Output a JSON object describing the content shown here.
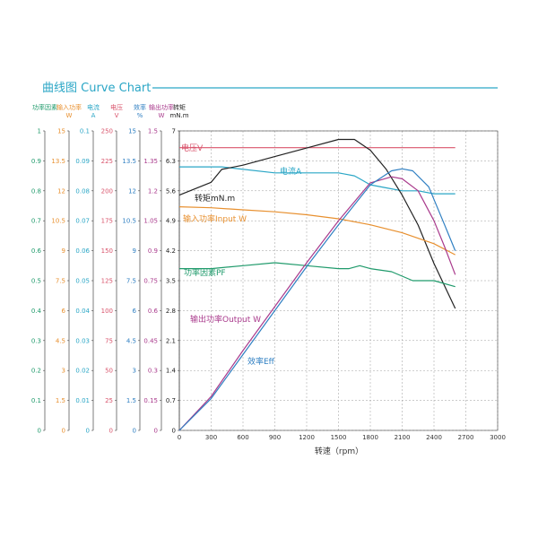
{
  "chart_data": {
    "type": "line",
    "title": "曲线图 Curve Chart",
    "xlabel": "转速（rpm）",
    "xlim": [
      0,
      3000
    ],
    "x_ticks": [
      "0",
      "300",
      "600",
      "900",
      "1200",
      "1500",
      "1800",
      "2100",
      "2400",
      "2700",
      "3000"
    ],
    "grid": true,
    "y_axes": [
      {
        "id": "pf",
        "label": "功率因素",
        "unit": "",
        "color": "#1f9a6b",
        "ylim": [
          0,
          1
        ],
        "ticks": [
          "0",
          "0.1",
          "0.2",
          "0.3",
          "0.4",
          "0.5",
          "0.6",
          "0.7",
          "0.8",
          "0.9",
          "1"
        ]
      },
      {
        "id": "pin",
        "label": "输入功率",
        "unit": "W",
        "color": "#e8902f",
        "ylim": [
          0,
          15
        ],
        "ticks": [
          "0",
          "1.5",
          "3",
          "4.5",
          "6",
          "7.5",
          "9",
          "10.5",
          "12",
          "13.5",
          "15"
        ]
      },
      {
        "id": "cur",
        "label": "电流",
        "unit": "A",
        "color": "#2aa6c6",
        "ylim": [
          0,
          0.1
        ],
        "ticks": [
          "0",
          "0.01",
          "0.02",
          "0.03",
          "0.04",
          "0.05",
          "0.06",
          "0.07",
          "0.08",
          "0.09",
          "0.1"
        ]
      },
      {
        "id": "vol",
        "label": "电压",
        "unit": "V",
        "color": "#d9546c",
        "ylim": [
          0,
          250
        ],
        "ticks": [
          "0",
          "25",
          "50",
          "75",
          "100",
          "125",
          "150",
          "175",
          "200",
          "225",
          "250"
        ]
      },
      {
        "id": "eff",
        "label": "效率",
        "unit": "%",
        "color": "#2f7fc2",
        "ylim": [
          0,
          15
        ],
        "ticks": [
          "0",
          "1.5",
          "3",
          "4.5",
          "6",
          "7.5",
          "9",
          "10.5",
          "12",
          "13.5",
          "15"
        ]
      },
      {
        "id": "pout",
        "label": "输出功率",
        "unit": "W",
        "color": "#a93a8c",
        "ylim": [
          0,
          1.5
        ],
        "ticks": [
          "0",
          "0.15",
          "0.3",
          "0.45",
          "0.6",
          "0.75",
          "0.9",
          "1.05",
          "1.2",
          "1.35",
          "1.5"
        ]
      },
      {
        "id": "tq",
        "label": "转矩",
        "unit": "mN.m",
        "color": "#222222",
        "ylim": [
          0,
          7
        ],
        "ticks": [
          "0",
          "0.7",
          "1.4",
          "2.1",
          "2.8",
          "3.5",
          "4.2",
          "4.9",
          "5.6",
          "6.3",
          "7"
        ]
      }
    ],
    "series": [
      {
        "name": "电压V",
        "axis": "vol",
        "color": "#d9546c",
        "x": [
          0,
          2600
        ],
        "y": [
          236,
          236
        ]
      },
      {
        "name": "电流A",
        "axis": "cur",
        "color": "#2aa6c6",
        "x": [
          0,
          400,
          900,
          1500,
          1650,
          1700,
          1800,
          1950,
          2100,
          2250,
          2400,
          2600
        ],
        "y": [
          0.088,
          0.088,
          0.086,
          0.086,
          0.085,
          0.084,
          0.082,
          0.081,
          0.08,
          0.08,
          0.079,
          0.079
        ]
      },
      {
        "name": "转矩mN.m",
        "axis": "tq",
        "color": "#222222",
        "x": [
          0,
          300,
          400,
          600,
          900,
          1200,
          1500,
          1650,
          1800,
          1950,
          2100,
          2250,
          2400,
          2600
        ],
        "y": [
          5.5,
          5.8,
          6.1,
          6.2,
          6.4,
          6.6,
          6.8,
          6.8,
          6.55,
          6.1,
          5.5,
          4.8,
          3.9,
          2.85
        ]
      },
      {
        "name": "输入功率Input W",
        "axis": "pin",
        "color": "#e8902f",
        "x": [
          0,
          300,
          600,
          900,
          1200,
          1500,
          1800,
          2100,
          2400,
          2600
        ],
        "y": [
          11.2,
          11.15,
          11.05,
          10.95,
          10.8,
          10.6,
          10.3,
          9.9,
          9.35,
          8.8
        ]
      },
      {
        "name": "功率因素PF",
        "axis": "pf",
        "color": "#1f9a6b",
        "x": [
          0,
          300,
          600,
          900,
          1200,
          1500,
          1600,
          1700,
          1800,
          2000,
          2200,
          2400,
          2600
        ],
        "y": [
          0.54,
          0.54,
          0.55,
          0.56,
          0.55,
          0.54,
          0.54,
          0.55,
          0.54,
          0.53,
          0.5,
          0.5,
          0.48
        ]
      },
      {
        "name": "输出功率Output W",
        "axis": "pout",
        "color": "#a93a8c",
        "x": [
          0,
          300,
          600,
          900,
          1200,
          1500,
          1800,
          2000,
          2100,
          2250,
          2400,
          2500,
          2600
        ],
        "y": [
          0,
          0.17,
          0.4,
          0.62,
          0.84,
          1.05,
          1.24,
          1.27,
          1.26,
          1.2,
          1.05,
          0.92,
          0.78
        ]
      },
      {
        "name": "效率Eff",
        "axis": "eff",
        "color": "#2f7fc2",
        "x": [
          0,
          300,
          600,
          900,
          1200,
          1500,
          1800,
          2000,
          2100,
          2200,
          2350,
          2500,
          2600
        ],
        "y": [
          0,
          1.6,
          3.8,
          6.0,
          8.2,
          10.3,
          12.3,
          13.0,
          13.1,
          13.0,
          12.2,
          10.3,
          9.0
        ]
      }
    ]
  }
}
